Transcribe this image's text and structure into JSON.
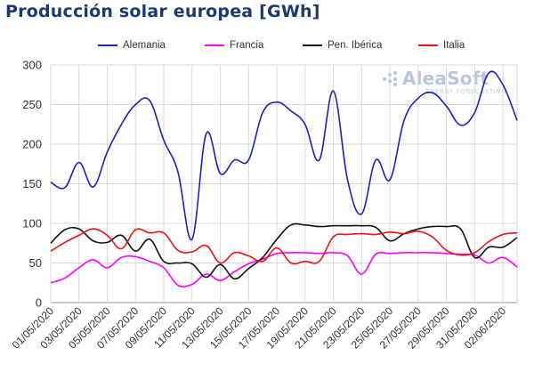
{
  "title": "Producción solar europea [GWh]",
  "logo": {
    "main": "AleaSoft",
    "sub": "ENERGY FORECASTING",
    "color": "#b9c6d9"
  },
  "chart_data": {
    "type": "line",
    "title": "Producción solar europea [GWh]",
    "xlabel": "",
    "ylabel": "",
    "ylim": [
      0,
      300
    ],
    "yticks": [
      0,
      50,
      100,
      150,
      200,
      250,
      300
    ],
    "grid": true,
    "legend_position": "top",
    "x_tick_labels": [
      "01/05/2020",
      "03/05/2020",
      "05/05/2020",
      "07/05/2020",
      "09/05/2020",
      "11/05/2020",
      "13/05/2020",
      "15/05/2020",
      "17/05/2020",
      "19/05/2020",
      "21/05/2020",
      "23/05/2020",
      "25/05/2020",
      "27/05/2020",
      "29/05/2020",
      "31/05/2020",
      "02/06/2020"
    ],
    "x": [
      "01/05/2020",
      "02/05/2020",
      "03/05/2020",
      "04/05/2020",
      "05/05/2020",
      "06/05/2020",
      "07/05/2020",
      "08/05/2020",
      "09/05/2020",
      "10/05/2020",
      "11/05/2020",
      "12/05/2020",
      "13/05/2020",
      "14/05/2020",
      "15/05/2020",
      "16/05/2020",
      "17/05/2020",
      "18/05/2020",
      "19/05/2020",
      "20/05/2020",
      "21/05/2020",
      "22/05/2020",
      "23/05/2020",
      "24/05/2020",
      "25/05/2020",
      "26/05/2020",
      "27/05/2020",
      "28/05/2020",
      "29/05/2020",
      "30/05/2020",
      "31/05/2020",
      "01/06/2020",
      "02/06/2020",
      "03/06/2020"
    ],
    "series": [
      {
        "name": "Alemania",
        "color": "#1f1fbf",
        "values": [
          152,
          145,
          177,
          146,
          190,
          225,
          250,
          255,
          205,
          165,
          80,
          213,
          163,
          180,
          180,
          240,
          253,
          242,
          225,
          180,
          267,
          155,
          112,
          180,
          155,
          230,
          258,
          265,
          248,
          224,
          240,
          290,
          275,
          230
        ]
      },
      {
        "name": "Francia",
        "color": "#ff00ff",
        "values": [
          25,
          31,
          44,
          54,
          44,
          57,
          58,
          52,
          44,
          22,
          23,
          36,
          28,
          39,
          49,
          55,
          62,
          63,
          63,
          62,
          63,
          59,
          36,
          61,
          62,
          63,
          63,
          63,
          62,
          61,
          60,
          50,
          57,
          45
        ]
      },
      {
        "name": "Pen. Ibérica",
        "color": "#111111",
        "values": [
          75,
          92,
          93,
          78,
          76,
          85,
          65,
          80,
          52,
          50,
          49,
          32,
          48,
          30,
          43,
          57,
          80,
          98,
          98,
          96,
          97,
          97,
          97,
          95,
          78,
          87,
          93,
          96,
          96,
          93,
          57,
          70,
          70,
          82
        ]
      },
      {
        "name": "Italia",
        "color": "#ee1111",
        "values": [
          65,
          76,
          85,
          93,
          85,
          68,
          92,
          88,
          88,
          66,
          64,
          72,
          50,
          63,
          59,
          52,
          69,
          50,
          52,
          52,
          83,
          86,
          87,
          86,
          89,
          87,
          90,
          83,
          66,
          60,
          63,
          77,
          86,
          88
        ]
      }
    ]
  }
}
